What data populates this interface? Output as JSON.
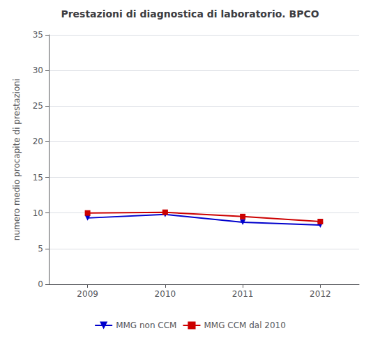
{
  "chart_data": {
    "type": "line",
    "title": "Prestazioni di diagnostica di laboratorio. BPCO",
    "ylabel": "numero medio procapite di prestazioni",
    "x": [
      2009,
      2010,
      2011,
      2012
    ],
    "xlim": [
      2008.5,
      2012.5
    ],
    "xticks": [
      2009,
      2010,
      2011,
      2012
    ],
    "series": [
      {
        "name": "MMG non CCM",
        "color": "#0000CC",
        "marker": "triangle-down",
        "values": [
          9.3,
          9.8,
          8.7,
          8.3
        ]
      },
      {
        "name": "MMG CCM dal 2010",
        "color": "#CC0000",
        "marker": "square",
        "values": [
          10.0,
          10.1,
          9.5,
          8.8
        ]
      }
    ],
    "ylim": [
      0,
      35
    ],
    "yticks": [
      0,
      5,
      10,
      15,
      20,
      25,
      30,
      35
    ],
    "grid": true,
    "legend": "bottom"
  }
}
